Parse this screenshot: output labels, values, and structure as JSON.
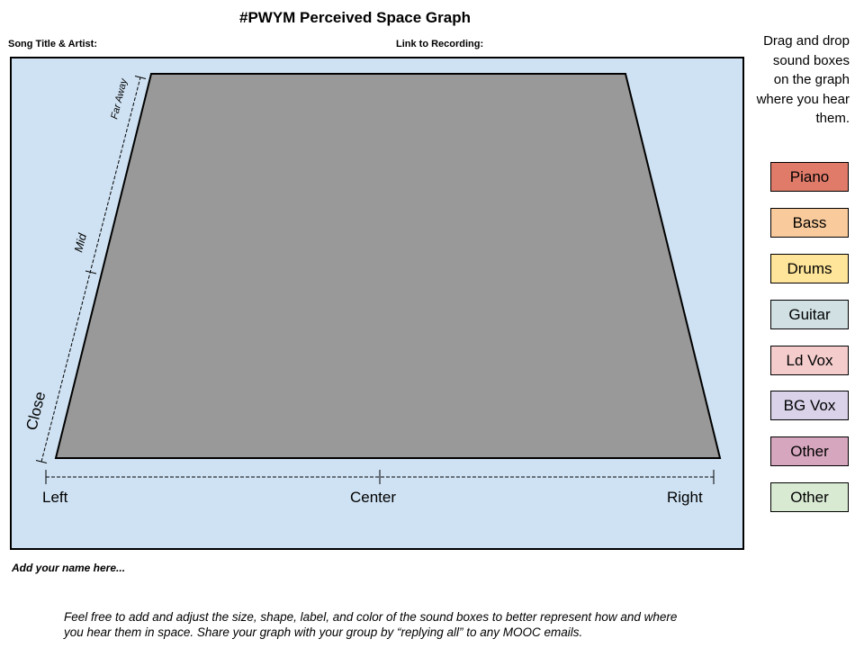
{
  "title": "#PWYM Perceived Space Graph",
  "fields": {
    "song_label": "Song Title & Artist:",
    "link_label": "Link to Recording:"
  },
  "instructions": [
    "Drag and drop",
    "sound boxes",
    "on the graph",
    "where you hear",
    "them."
  ],
  "graph": {
    "fill_color": "#999999",
    "background_color": "#cfe2f3",
    "horizontal_axis": [
      "Left",
      "Center",
      "Right"
    ],
    "depth_axis": [
      "Close",
      "Mid",
      "Far Away"
    ]
  },
  "sound_boxes": [
    {
      "label": "Piano",
      "color": "#e07b6a"
    },
    {
      "label": "Bass",
      "color": "#f9cb9c"
    },
    {
      "label": "Drums",
      "color": "#ffe599"
    },
    {
      "label": "Guitar",
      "color": "#d0e0e3"
    },
    {
      "label": "Ld Vox",
      "color": "#f4cccc"
    },
    {
      "label": "BG Vox",
      "color": "#d9d2e9"
    },
    {
      "label": "Other",
      "color": "#d5a6bd"
    },
    {
      "label": "Other",
      "color": "#d9ead3"
    }
  ],
  "name_prompt": "Add your name here...",
  "footnote": [
    "Feel free to add and adjust the size, shape, label, and color of the sound boxes to better represent how and where",
    "you hear them in space. Share your graph with your group by “replying all” to any MOOC emails."
  ]
}
